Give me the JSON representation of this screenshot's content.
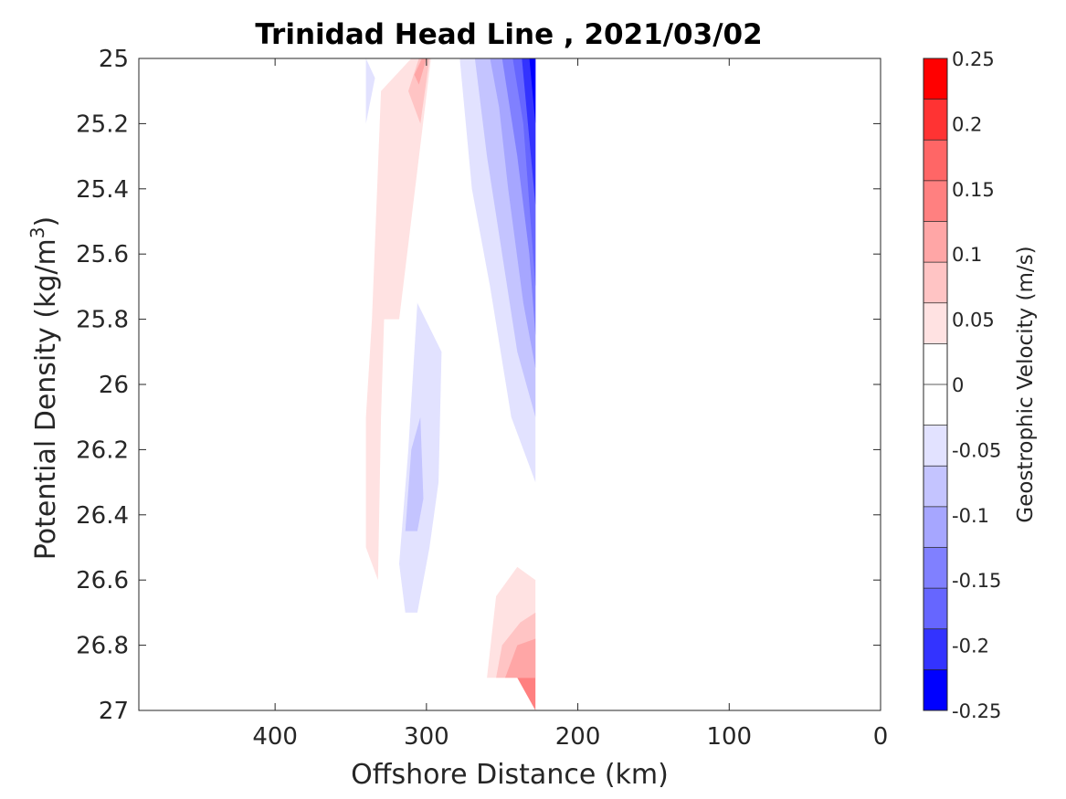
{
  "chart_data": {
    "type": "contour",
    "title": "Trinidad Head Line , 2021/03/02",
    "xlabel": "Offshore Distance (km)",
    "ylabel_main": "Potential Density (kg/m",
    "ylabel_sup": "3",
    "ylabel_tail": ")",
    "xlim": [
      490,
      0
    ],
    "x_reversed": true,
    "ylim": [
      25,
      27
    ],
    "y_reversed": true,
    "x_ticks": [
      400,
      300,
      200,
      100,
      0
    ],
    "x_tick_labels": [
      "400",
      "300",
      "200",
      "100",
      "0"
    ],
    "y_ticks": [
      25,
      25.2,
      25.4,
      25.6,
      25.8,
      26,
      26.2,
      26.4,
      26.6,
      26.8,
      27
    ],
    "y_tick_labels": [
      "25",
      "25.2",
      "25.4",
      "25.6",
      "25.8",
      "26",
      "26.2",
      "26.4",
      "26.6",
      "26.8",
      "27"
    ],
    "colorbar": {
      "label": "Geostrophic Velocity (m/s)",
      "range": [
        -0.25,
        0.25
      ],
      "level_step": 0.025,
      "tick_values": [
        0.25,
        0.2,
        0.15,
        0.1,
        0.05,
        0,
        -0.05,
        -0.1,
        -0.15,
        -0.2,
        -0.25
      ],
      "tick_labels": [
        "0.25",
        "0.2",
        "0.15",
        "0.1",
        "0.05",
        "0",
        "-0.05",
        "-0.1",
        "-0.15",
        "-0.2",
        "-0.25"
      ],
      "colors": [
        "#ff0000",
        "#ff3333",
        "#ff6666",
        "#ff8080",
        "#ffa6a6",
        "#ffc4c4",
        "#ffe2e2",
        "#ffffff",
        "#ffffff",
        "#e2e2ff",
        "#c4c4ff",
        "#a6a6ff",
        "#8080ff",
        "#6666ff",
        "#3333ff",
        "#0000ff"
      ]
    },
    "contour_regions": [
      {
        "level": -0.05,
        "color": "#e2e2ff",
        "points": [
          [
            278,
            25
          ],
          [
            228,
            25
          ],
          [
            228,
            26.3
          ],
          [
            244,
            26.1
          ],
          [
            258,
            25.7
          ],
          [
            270,
            25.4
          ]
        ]
      },
      {
        "level": -0.075,
        "color": "#c4c4ff",
        "points": [
          [
            268,
            25
          ],
          [
            228,
            25
          ],
          [
            228,
            26.1
          ],
          [
            240,
            25.9
          ],
          [
            250,
            25.6
          ],
          [
            260,
            25.3
          ]
        ]
      },
      {
        "level": -0.1,
        "color": "#a6a6ff",
        "points": [
          [
            258,
            25
          ],
          [
            228,
            25
          ],
          [
            228,
            25.95
          ],
          [
            236,
            25.75
          ],
          [
            246,
            25.4
          ],
          [
            252,
            25.15
          ]
        ]
      },
      {
        "level": -0.125,
        "color": "#8080ff",
        "points": [
          [
            250,
            25
          ],
          [
            228,
            25
          ],
          [
            228,
            25.85
          ],
          [
            232,
            25.6
          ],
          [
            240,
            25.3
          ]
        ]
      },
      {
        "level": -0.15,
        "color": "#6666ff",
        "points": [
          [
            243,
            25
          ],
          [
            228,
            25
          ],
          [
            228,
            25.7
          ],
          [
            236,
            25.2
          ]
        ]
      },
      {
        "level": -0.175,
        "color": "#3333ff",
        "points": [
          [
            237,
            25
          ],
          [
            228,
            25
          ],
          [
            228,
            25.45
          ]
        ]
      },
      {
        "level": -0.2,
        "color": "#0000ff",
        "points": [
          [
            232,
            25
          ],
          [
            228,
            25
          ],
          [
            228,
            25.2
          ]
        ]
      },
      {
        "level": -0.05,
        "color": "#e2e2ff",
        "points": [
          [
            290,
            25.9
          ],
          [
            306,
            25.75
          ],
          [
            312,
            26.2
          ],
          [
            318,
            26.55
          ],
          [
            314,
            26.7
          ],
          [
            306,
            26.7
          ],
          [
            298,
            26.5
          ],
          [
            292,
            26.3
          ]
        ]
      },
      {
        "level": -0.075,
        "color": "#c4c4ff",
        "points": [
          [
            304,
            26.1
          ],
          [
            310,
            26.2
          ],
          [
            314,
            26.45
          ],
          [
            306,
            26.45
          ],
          [
            302,
            26.35
          ]
        ]
      },
      {
        "level": -0.05,
        "color": "#e2e2ff",
        "points": [
          [
            340,
            25
          ],
          [
            334,
            25.06
          ],
          [
            340,
            25.2
          ]
        ]
      },
      {
        "level": 0.05,
        "color": "#ffe2e2",
        "points": [
          [
            310,
            25
          ],
          [
            297,
            25
          ],
          [
            318,
            25.8
          ],
          [
            328,
            25.8
          ],
          [
            330,
            26.1
          ],
          [
            332,
            26.6
          ],
          [
            340,
            26.5
          ],
          [
            340,
            26.1
          ],
          [
            336,
            25.8
          ],
          [
            330,
            25.1
          ]
        ]
      },
      {
        "level": 0.075,
        "color": "#ffc4c4",
        "points": [
          [
            305,
            25
          ],
          [
            298,
            25
          ],
          [
            304,
            25.2
          ],
          [
            312,
            25.1
          ]
        ]
      },
      {
        "level": 0.1,
        "color": "#ffa6a6",
        "points": [
          [
            303,
            25
          ],
          [
            300,
            25
          ],
          [
            305,
            25.08
          ],
          [
            308,
            25.05
          ]
        ]
      },
      {
        "level": 0.05,
        "color": "#ffe2e2",
        "points": [
          [
            260,
            26.9
          ],
          [
            228,
            26.9
          ],
          [
            228,
            26.6
          ],
          [
            240,
            26.56
          ],
          [
            254,
            26.65
          ]
        ]
      },
      {
        "level": 0.075,
        "color": "#ffc4c4",
        "points": [
          [
            254,
            26.9
          ],
          [
            228,
            26.9
          ],
          [
            228,
            26.7
          ],
          [
            238,
            26.73
          ],
          [
            250,
            26.8
          ]
        ]
      },
      {
        "level": 0.1,
        "color": "#ffa6a6",
        "points": [
          [
            248,
            26.9
          ],
          [
            228,
            26.9
          ],
          [
            228,
            26.78
          ],
          [
            240,
            26.8
          ]
        ]
      },
      {
        "level": 0.125,
        "color": "#ff8080",
        "points": [
          [
            240,
            26.9
          ],
          [
            228,
            26.9
          ],
          [
            228,
            27
          ]
        ]
      }
    ]
  }
}
